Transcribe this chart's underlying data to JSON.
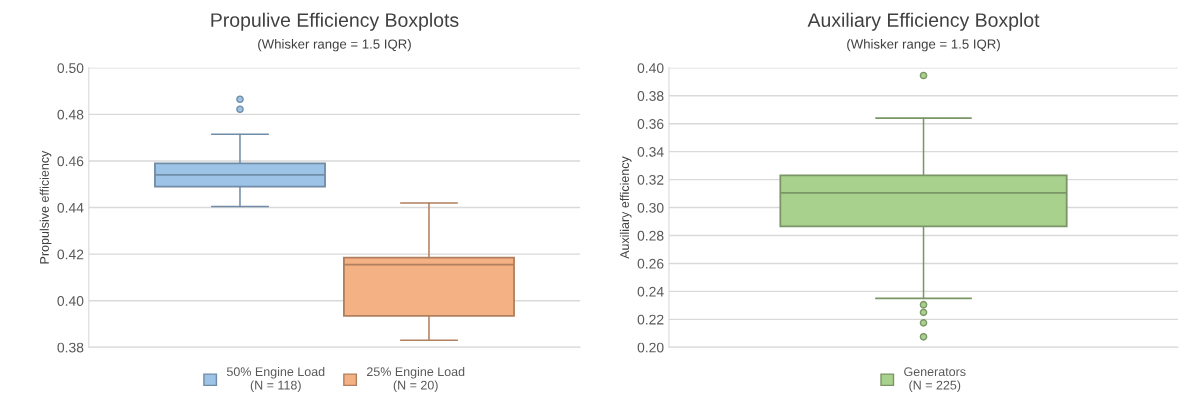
{
  "chart_data": [
    {
      "type": "box",
      "title": "Propulive Efficiency Boxplots",
      "subtitle": "(Whisker range = 1.5 IQR)",
      "ylabel": "Propulsive efficiency",
      "categories": [
        null
      ],
      "ylim": [
        0.38,
        0.5
      ],
      "yticks": [
        {
          "value": 0.38,
          "label": "0.38"
        },
        {
          "value": 0.4,
          "label": "0.40"
        },
        {
          "value": 0.42,
          "label": "0.42"
        },
        {
          "value": 0.44,
          "label": "0.44"
        },
        {
          "value": 0.46,
          "label": "0.46"
        },
        {
          "value": 0.48,
          "label": "0.48"
        },
        {
          "value": 0.5,
          "label": "0.50"
        }
      ],
      "grid": "y",
      "legend": "bottom",
      "series": [
        {
          "name": "50% Engine Load\n(N = 118)",
          "color": "#9dc3e6",
          "boxes": [
            {
              "low": 0.4405,
              "q1": 0.449,
              "median": 0.454,
              "q3": 0.459,
              "high": 0.4715,
              "outliers": [
                0.4865,
                0.4822
              ]
            }
          ]
        },
        {
          "name": "25% Engine Load\n(N = 20)",
          "color": "#f4b183",
          "boxes": [
            {
              "low": 0.383,
              "q1": 0.3935,
              "median": 0.4155,
              "q3": 0.4185,
              "high": 0.442
            }
          ]
        }
      ]
    },
    {
      "type": "box",
      "title": "Auxiliary Efficiency Boxplot",
      "subtitle": "(Whisker range = 1.5 IQR)",
      "ylabel": "Auxiliary efficiency",
      "categories": [
        null
      ],
      "ylim": [
        0.2,
        0.4
      ],
      "yticks": [
        {
          "value": 0.2,
          "label": "0.20"
        },
        {
          "value": 0.22,
          "label": "0.22"
        },
        {
          "value": 0.24,
          "label": "0.24"
        },
        {
          "value": 0.26,
          "label": "0.26"
        },
        {
          "value": 0.28,
          "label": "0.28"
        },
        {
          "value": 0.3,
          "label": "0.30"
        },
        {
          "value": 0.32,
          "label": "0.32"
        },
        {
          "value": 0.34,
          "label": "0.34"
        },
        {
          "value": 0.36,
          "label": "0.36"
        },
        {
          "value": 0.38,
          "label": "0.38"
        },
        {
          "value": 0.4,
          "label": "0.40"
        }
      ],
      "grid": "y",
      "legend": "bottom",
      "series": [
        {
          "name": "Generators\n(N = 225)",
          "color": "#a9d18e",
          "boxes": [
            {
              "low": 0.235,
              "q1": 0.2865,
              "median": 0.3105,
              "q3": 0.323,
              "high": 0.364,
              "outliers": [
                0.3945,
                0.2305,
                0.225,
                0.2175,
                0.2075
              ]
            }
          ]
        }
      ]
    }
  ]
}
